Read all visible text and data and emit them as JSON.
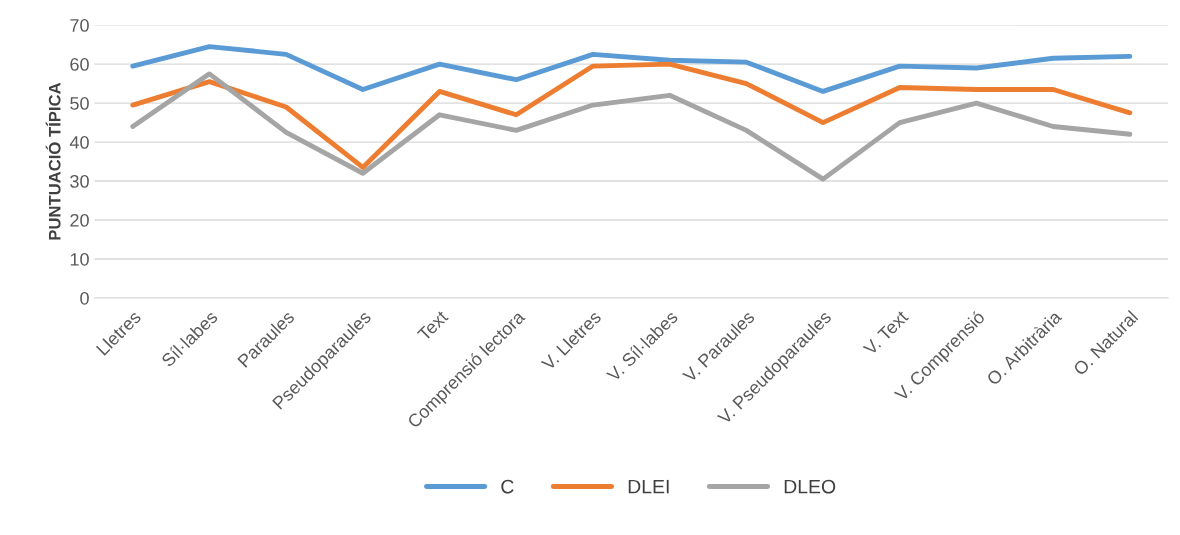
{
  "chart_data": {
    "type": "line",
    "ylabel": "PUNTUACIÓ TÍPICA",
    "categories": [
      "Lletres",
      "Síl·labes",
      "Paraules",
      "Pseudoparaules",
      "Text",
      "Comprensió lectora",
      "V. Lletres",
      "V. Síl·labes",
      "V. Paraules",
      "V. Pseudoparaules",
      "V. Text",
      "V. Comprensió",
      "O. Arbitrària",
      "O. Natural"
    ],
    "series": [
      {
        "name": "C",
        "color": "#5b9bd5",
        "values": [
          59.5,
          64.5,
          62.5,
          53.5,
          60,
          56,
          62.5,
          61,
          60.5,
          53,
          59.5,
          59,
          61.5,
          62
        ]
      },
      {
        "name": "DLEI",
        "color": "#ed7d31",
        "values": [
          49.5,
          55.5,
          49,
          33.5,
          53,
          47,
          59.5,
          60,
          55,
          45,
          54,
          53.5,
          53.5,
          47.5
        ]
      },
      {
        "name": "DLEO",
        "color": "#a5a5a5",
        "values": [
          44,
          57.5,
          42.5,
          32,
          47,
          43,
          49.5,
          52,
          43,
          30.5,
          45,
          50,
          44,
          42
        ]
      }
    ],
    "ylim": [
      0,
      70
    ],
    "yticks": [
      0,
      10,
      20,
      30,
      40,
      50,
      60,
      70
    ],
    "grid": "y",
    "legend": "bottom",
    "marker": "none",
    "line_style": "solid"
  }
}
